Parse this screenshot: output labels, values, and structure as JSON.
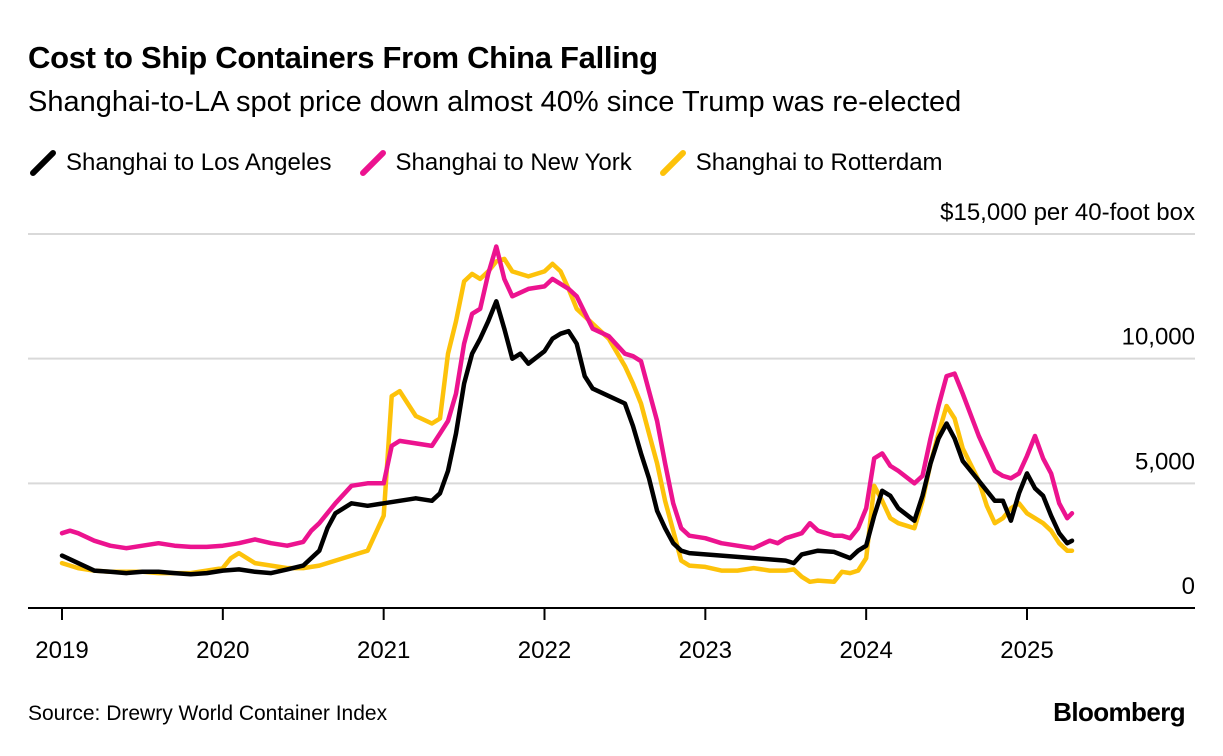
{
  "header": {
    "title": "Cost to Ship Containers From China Falling",
    "subtitle": "Shanghai-to-LA spot price down almost 40% since Trump was re-elected"
  },
  "footer": {
    "source": "Source: Drewry World Container Index",
    "brand": "Bloomberg"
  },
  "chart_data": {
    "type": "line",
    "ylabel": "$15,000 per 40-foot box",
    "ylim": [
      0,
      15000
    ],
    "y_ticks": [
      {
        "value": 15000,
        "label": "$15,000 per 40-foot box"
      },
      {
        "value": 10000,
        "label": "10,000"
      },
      {
        "value": 5000,
        "label": "5,000"
      },
      {
        "value": 0,
        "label": "0"
      }
    ],
    "xlim": [
      2019,
      2026.2
    ],
    "x_ticks": [
      {
        "value": 2019,
        "label": "2019"
      },
      {
        "value": 2020,
        "label": "2020"
      },
      {
        "value": 2021,
        "label": "2021"
      },
      {
        "value": 2022,
        "label": "2022"
      },
      {
        "value": 2023,
        "label": "2023"
      },
      {
        "value": 2024,
        "label": "2024"
      },
      {
        "value": 2025,
        "label": "2025"
      }
    ],
    "grid": true,
    "legend_position": "top-left",
    "series": [
      {
        "name": "Shanghai to Los Angeles",
        "color": "#000000",
        "points": [
          [
            2019.0,
            2100
          ],
          [
            2019.1,
            1800
          ],
          [
            2019.2,
            1500
          ],
          [
            2019.3,
            1450
          ],
          [
            2019.4,
            1400
          ],
          [
            2019.5,
            1450
          ],
          [
            2019.6,
            1450
          ],
          [
            2019.7,
            1400
          ],
          [
            2019.8,
            1350
          ],
          [
            2019.9,
            1400
          ],
          [
            2020.0,
            1500
          ],
          [
            2020.1,
            1550
          ],
          [
            2020.2,
            1450
          ],
          [
            2020.3,
            1400
          ],
          [
            2020.4,
            1550
          ],
          [
            2020.5,
            1700
          ],
          [
            2020.6,
            2300
          ],
          [
            2020.65,
            3200
          ],
          [
            2020.7,
            3800
          ],
          [
            2020.8,
            4200
          ],
          [
            2020.9,
            4100
          ],
          [
            2021.0,
            4200
          ],
          [
            2021.1,
            4300
          ],
          [
            2021.2,
            4400
          ],
          [
            2021.3,
            4300
          ],
          [
            2021.35,
            4600
          ],
          [
            2021.4,
            5500
          ],
          [
            2021.45,
            7000
          ],
          [
            2021.5,
            9000
          ],
          [
            2021.55,
            10200
          ],
          [
            2021.6,
            10800
          ],
          [
            2021.65,
            11500
          ],
          [
            2021.7,
            12300
          ],
          [
            2021.75,
            11200
          ],
          [
            2021.8,
            10000
          ],
          [
            2021.85,
            10200
          ],
          [
            2021.9,
            9800
          ],
          [
            2022.0,
            10300
          ],
          [
            2022.05,
            10800
          ],
          [
            2022.1,
            11000
          ],
          [
            2022.15,
            11100
          ],
          [
            2022.2,
            10600
          ],
          [
            2022.25,
            9300
          ],
          [
            2022.3,
            8800
          ],
          [
            2022.4,
            8500
          ],
          [
            2022.5,
            8200
          ],
          [
            2022.55,
            7300
          ],
          [
            2022.6,
            6200
          ],
          [
            2022.65,
            5200
          ],
          [
            2022.7,
            3900
          ],
          [
            2022.75,
            3200
          ],
          [
            2022.8,
            2600
          ],
          [
            2022.85,
            2300
          ],
          [
            2022.9,
            2200
          ],
          [
            2023.0,
            2150
          ],
          [
            2023.1,
            2100
          ],
          [
            2023.2,
            2050
          ],
          [
            2023.3,
            2000
          ],
          [
            2023.4,
            1950
          ],
          [
            2023.5,
            1900
          ],
          [
            2023.55,
            1800
          ],
          [
            2023.6,
            2150
          ],
          [
            2023.7,
            2300
          ],
          [
            2023.8,
            2250
          ],
          [
            2023.9,
            2000
          ],
          [
            2023.95,
            2300
          ],
          [
            2024.0,
            2500
          ],
          [
            2024.05,
            3700
          ],
          [
            2024.1,
            4700
          ],
          [
            2024.15,
            4500
          ],
          [
            2024.2,
            4000
          ],
          [
            2024.3,
            3500
          ],
          [
            2024.35,
            4500
          ],
          [
            2024.4,
            5800
          ],
          [
            2024.45,
            6800
          ],
          [
            2024.5,
            7400
          ],
          [
            2024.55,
            6800
          ],
          [
            2024.6,
            5900
          ],
          [
            2024.7,
            5100
          ],
          [
            2024.75,
            4700
          ],
          [
            2024.8,
            4300
          ],
          [
            2024.85,
            4300
          ],
          [
            2024.9,
            3500
          ],
          [
            2024.95,
            4600
          ],
          [
            2025.0,
            5400
          ],
          [
            2025.05,
            4800
          ],
          [
            2025.1,
            4500
          ],
          [
            2025.15,
            3700
          ],
          [
            2025.2,
            3000
          ],
          [
            2025.25,
            2600
          ],
          [
            2025.28,
            2700
          ]
        ]
      },
      {
        "name": "Shanghai to New York",
        "color": "#ec138f",
        "points": [
          [
            2019.0,
            3000
          ],
          [
            2019.05,
            3100
          ],
          [
            2019.1,
            3000
          ],
          [
            2019.2,
            2700
          ],
          [
            2019.3,
            2500
          ],
          [
            2019.4,
            2400
          ],
          [
            2019.5,
            2500
          ],
          [
            2019.6,
            2600
          ],
          [
            2019.7,
            2500
          ],
          [
            2019.8,
            2450
          ],
          [
            2019.9,
            2450
          ],
          [
            2020.0,
            2500
          ],
          [
            2020.1,
            2600
          ],
          [
            2020.2,
            2750
          ],
          [
            2020.3,
            2600
          ],
          [
            2020.4,
            2500
          ],
          [
            2020.5,
            2650
          ],
          [
            2020.55,
            3100
          ],
          [
            2020.6,
            3400
          ],
          [
            2020.7,
            4200
          ],
          [
            2020.8,
            4900
          ],
          [
            2020.9,
            5000
          ],
          [
            2021.0,
            5000
          ],
          [
            2021.05,
            6500
          ],
          [
            2021.1,
            6700
          ],
          [
            2021.2,
            6600
          ],
          [
            2021.3,
            6500
          ],
          [
            2021.35,
            7000
          ],
          [
            2021.4,
            7500
          ],
          [
            2021.45,
            8600
          ],
          [
            2021.5,
            10600
          ],
          [
            2021.55,
            11800
          ],
          [
            2021.6,
            12000
          ],
          [
            2021.65,
            13400
          ],
          [
            2021.7,
            14500
          ],
          [
            2021.75,
            13200
          ],
          [
            2021.8,
            12500
          ],
          [
            2021.9,
            12800
          ],
          [
            2022.0,
            12900
          ],
          [
            2022.05,
            13200
          ],
          [
            2022.1,
            13000
          ],
          [
            2022.15,
            12800
          ],
          [
            2022.2,
            12500
          ],
          [
            2022.3,
            11200
          ],
          [
            2022.4,
            10900
          ],
          [
            2022.5,
            10200
          ],
          [
            2022.55,
            10100
          ],
          [
            2022.6,
            9900
          ],
          [
            2022.65,
            8700
          ],
          [
            2022.7,
            7500
          ],
          [
            2022.75,
            5800
          ],
          [
            2022.8,
            4200
          ],
          [
            2022.85,
            3200
          ],
          [
            2022.9,
            2900
          ],
          [
            2023.0,
            2800
          ],
          [
            2023.1,
            2600
          ],
          [
            2023.2,
            2500
          ],
          [
            2023.3,
            2400
          ],
          [
            2023.4,
            2700
          ],
          [
            2023.45,
            2600
          ],
          [
            2023.5,
            2800
          ],
          [
            2023.6,
            3000
          ],
          [
            2023.65,
            3400
          ],
          [
            2023.7,
            3100
          ],
          [
            2023.8,
            2900
          ],
          [
            2023.85,
            2900
          ],
          [
            2023.9,
            2800
          ],
          [
            2023.95,
            3200
          ],
          [
            2024.0,
            4000
          ],
          [
            2024.05,
            6000
          ],
          [
            2024.1,
            6200
          ],
          [
            2024.15,
            5700
          ],
          [
            2024.2,
            5500
          ],
          [
            2024.3,
            5000
          ],
          [
            2024.35,
            5300
          ],
          [
            2024.4,
            6800
          ],
          [
            2024.45,
            8100
          ],
          [
            2024.5,
            9300
          ],
          [
            2024.55,
            9400
          ],
          [
            2024.6,
            8600
          ],
          [
            2024.7,
            6900
          ],
          [
            2024.8,
            5500
          ],
          [
            2024.85,
            5300
          ],
          [
            2024.9,
            5200
          ],
          [
            2024.95,
            5400
          ],
          [
            2025.0,
            6100
          ],
          [
            2025.05,
            6900
          ],
          [
            2025.1,
            6000
          ],
          [
            2025.15,
            5400
          ],
          [
            2025.2,
            4200
          ],
          [
            2025.25,
            3600
          ],
          [
            2025.28,
            3800
          ]
        ]
      },
      {
        "name": "Shanghai to Rotterdam",
        "color": "#fdc20a",
        "points": [
          [
            2019.0,
            1800
          ],
          [
            2019.1,
            1600
          ],
          [
            2019.2,
            1500
          ],
          [
            2019.3,
            1450
          ],
          [
            2019.4,
            1450
          ],
          [
            2019.5,
            1450
          ],
          [
            2019.6,
            1400
          ],
          [
            2019.7,
            1400
          ],
          [
            2019.8,
            1400
          ],
          [
            2019.9,
            1500
          ],
          [
            2020.0,
            1600
          ],
          [
            2020.05,
            2000
          ],
          [
            2020.1,
            2200
          ],
          [
            2020.2,
            1800
          ],
          [
            2020.3,
            1700
          ],
          [
            2020.4,
            1600
          ],
          [
            2020.5,
            1600
          ],
          [
            2020.6,
            1700
          ],
          [
            2020.7,
            1900
          ],
          [
            2020.8,
            2100
          ],
          [
            2020.85,
            2200
          ],
          [
            2020.9,
            2300
          ],
          [
            2021.0,
            3700
          ],
          [
            2021.05,
            8500
          ],
          [
            2021.1,
            8700
          ],
          [
            2021.2,
            7700
          ],
          [
            2021.3,
            7400
          ],
          [
            2021.35,
            7600
          ],
          [
            2021.4,
            10200
          ],
          [
            2021.45,
            11500
          ],
          [
            2021.5,
            13100
          ],
          [
            2021.55,
            13400
          ],
          [
            2021.6,
            13200
          ],
          [
            2021.65,
            13500
          ],
          [
            2021.7,
            13900
          ],
          [
            2021.75,
            14000
          ],
          [
            2021.8,
            13500
          ],
          [
            2021.9,
            13300
          ],
          [
            2022.0,
            13500
          ],
          [
            2022.05,
            13800
          ],
          [
            2022.1,
            13500
          ],
          [
            2022.15,
            12800
          ],
          [
            2022.2,
            12000
          ],
          [
            2022.3,
            11400
          ],
          [
            2022.4,
            10800
          ],
          [
            2022.5,
            9700
          ],
          [
            2022.55,
            9000
          ],
          [
            2022.6,
            8200
          ],
          [
            2022.65,
            7000
          ],
          [
            2022.7,
            5800
          ],
          [
            2022.75,
            4300
          ],
          [
            2022.8,
            3100
          ],
          [
            2022.85,
            1900
          ],
          [
            2022.9,
            1700
          ],
          [
            2023.0,
            1650
          ],
          [
            2023.1,
            1500
          ],
          [
            2023.2,
            1500
          ],
          [
            2023.3,
            1600
          ],
          [
            2023.4,
            1500
          ],
          [
            2023.5,
            1500
          ],
          [
            2023.55,
            1550
          ],
          [
            2023.6,
            1250
          ],
          [
            2023.65,
            1050
          ],
          [
            2023.7,
            1100
          ],
          [
            2023.8,
            1050
          ],
          [
            2023.85,
            1450
          ],
          [
            2023.9,
            1400
          ],
          [
            2023.95,
            1500
          ],
          [
            2024.0,
            2000
          ],
          [
            2024.05,
            4900
          ],
          [
            2024.1,
            4300
          ],
          [
            2024.15,
            3600
          ],
          [
            2024.2,
            3400
          ],
          [
            2024.3,
            3200
          ],
          [
            2024.35,
            4300
          ],
          [
            2024.4,
            5800
          ],
          [
            2024.45,
            7000
          ],
          [
            2024.5,
            8100
          ],
          [
            2024.55,
            7600
          ],
          [
            2024.6,
            6400
          ],
          [
            2024.7,
            5100
          ],
          [
            2024.75,
            4100
          ],
          [
            2024.8,
            3400
          ],
          [
            2024.85,
            3600
          ],
          [
            2024.9,
            4000
          ],
          [
            2024.95,
            4200
          ],
          [
            2025.0,
            3800
          ],
          [
            2025.05,
            3600
          ],
          [
            2025.1,
            3400
          ],
          [
            2025.15,
            3100
          ],
          [
            2025.2,
            2600
          ],
          [
            2025.25,
            2300
          ],
          [
            2025.28,
            2300
          ]
        ]
      }
    ]
  }
}
